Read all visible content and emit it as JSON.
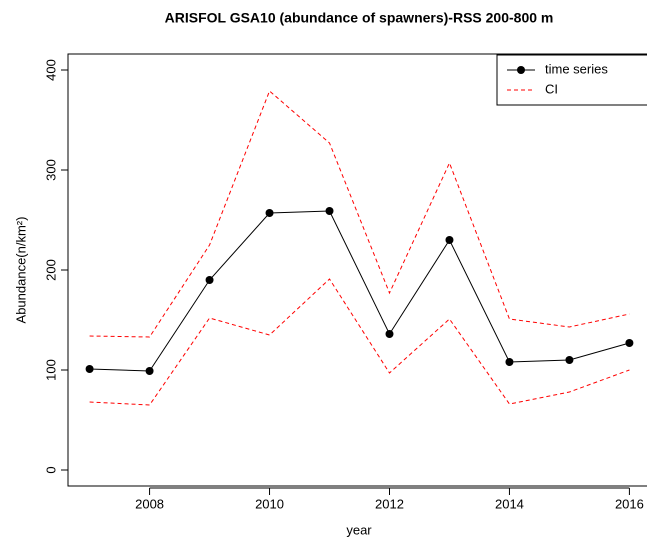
{
  "chart_data": {
    "type": "line",
    "title": "ARISFOL GSA10 (abundance of spawners)-RSS 200-800 m",
    "xlabel": "year",
    "ylabel": "Abundance(n/km²)",
    "x": [
      2007,
      2008,
      2009,
      2010,
      2011,
      2012,
      2013,
      2014,
      2015,
      2016
    ],
    "series": [
      {
        "name": "time series",
        "color": "#000000",
        "values": [
          101,
          99,
          190,
          257,
          259,
          136,
          230,
          108,
          110,
          127
        ]
      },
      {
        "name": "CI",
        "color": "#ff0000",
        "upper": [
          134,
          133,
          225,
          379,
          327,
          177,
          307,
          151,
          143,
          156
        ],
        "lower": [
          68,
          65,
          152,
          135,
          191,
          97,
          151,
          66,
          78,
          100
        ]
      }
    ],
    "xlim": [
      2006.64,
      2016.36
    ],
    "xticks": [
      2008,
      2010,
      2012,
      2014,
      2016
    ],
    "ylim": [
      -16,
      416
    ],
    "yticks": [
      0,
      100,
      200,
      300,
      400
    ],
    "legend": "top-right"
  }
}
